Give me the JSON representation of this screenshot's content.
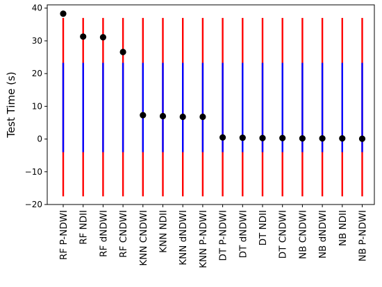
{
  "chart_data": {
    "type": "scatter",
    "title": "",
    "xlabel": "",
    "ylabel": "Test Time (s)",
    "ylim": [
      -20,
      41
    ],
    "yticks": [
      -20,
      -10,
      0,
      10,
      20,
      30,
      40
    ],
    "grid": false,
    "categories": [
      "RF P-NDWI",
      "RF NDII",
      "RF dNDWI",
      "RF CNDWI",
      "KNN CNDWI",
      "KNN NDII",
      "KNN dNDWI",
      "KNN P-NDWI",
      "DT P-NDWI",
      "DT dNDWI",
      "DT NDII",
      "DT CNDWI",
      "NB CNDWI",
      "NB dNDWI",
      "NB NDII",
      "NB P-NDWI"
    ],
    "values": [
      38.3,
      31.3,
      31.1,
      26.6,
      7.3,
      7.0,
      6.8,
      6.8,
      0.5,
      0.4,
      0.3,
      0.3,
      0.2,
      0.2,
      0.2,
      0.1
    ],
    "intervals": {
      "outer": {
        "low": -17.5,
        "high": 37.0,
        "color": "#ff0000"
      },
      "inner": {
        "low": -4.0,
        "high": 23.3,
        "color": "#0000ff"
      }
    },
    "marker_color": "#000000"
  }
}
